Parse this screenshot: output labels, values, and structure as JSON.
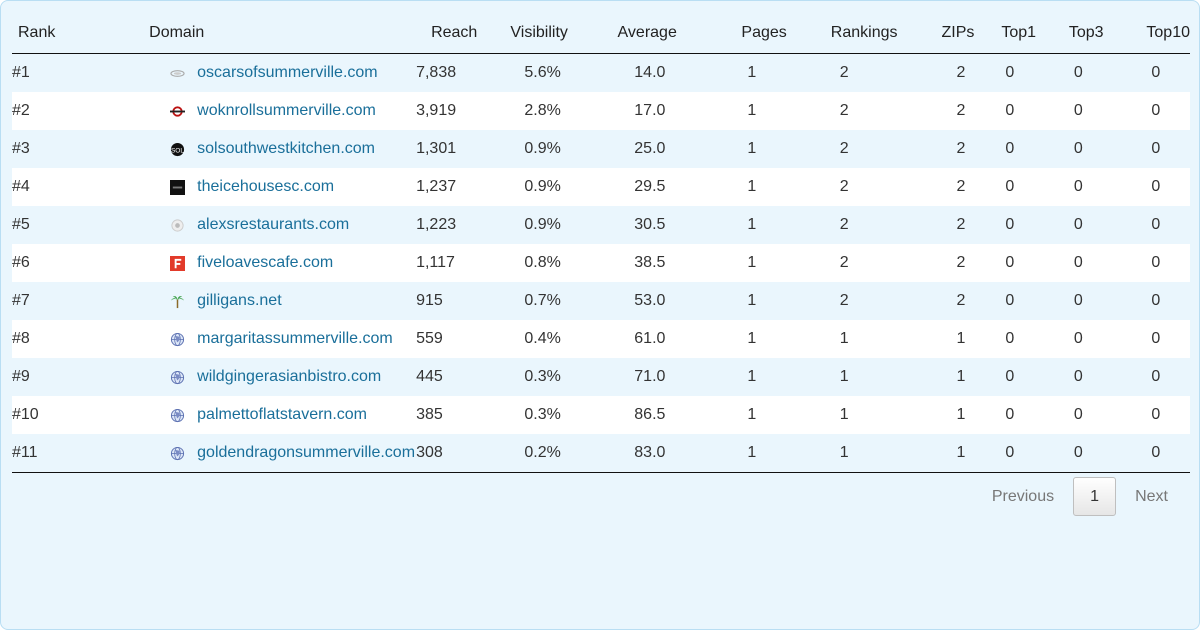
{
  "headers": {
    "rank": "Rank",
    "domain": "Domain",
    "reach": "Reach",
    "visibility": "Visibility",
    "average": "Average",
    "pages": "Pages",
    "rankings": "Rankings",
    "zips": "ZIPs",
    "top1": "Top1",
    "top3": "Top3",
    "top10": "Top10"
  },
  "rows": [
    {
      "rank": "#1",
      "domain": "oscarsofsummerville.com",
      "icon": "oscars-favicon-icon",
      "reach": "7,838",
      "visibility": "5.6%",
      "average": "14.0",
      "pages": "1",
      "rankings": "2",
      "zips": "2",
      "top1": "0",
      "top3": "0",
      "top10": "0"
    },
    {
      "rank": "#2",
      "domain": "woknrollsummerville.com",
      "icon": "woknroll-favicon-icon",
      "reach": "3,919",
      "visibility": "2.8%",
      "average": "17.0",
      "pages": "1",
      "rankings": "2",
      "zips": "2",
      "top1": "0",
      "top3": "0",
      "top10": "0"
    },
    {
      "rank": "#3",
      "domain": "solsouthwestkitchen.com",
      "icon": "sol-favicon-icon",
      "reach": "1,301",
      "visibility": "0.9%",
      "average": "25.0",
      "pages": "1",
      "rankings": "2",
      "zips": "2",
      "top1": "0",
      "top3": "0",
      "top10": "0"
    },
    {
      "rank": "#4",
      "domain": "theicehousesc.com",
      "icon": "icehouse-favicon-icon",
      "reach": "1,237",
      "visibility": "0.9%",
      "average": "29.5",
      "pages": "1",
      "rankings": "2",
      "zips": "2",
      "top1": "0",
      "top3": "0",
      "top10": "0"
    },
    {
      "rank": "#5",
      "domain": "alexsrestaurants.com",
      "icon": "alexs-favicon-icon",
      "reach": "1,223",
      "visibility": "0.9%",
      "average": "30.5",
      "pages": "1",
      "rankings": "2",
      "zips": "2",
      "top1": "0",
      "top3": "0",
      "top10": "0"
    },
    {
      "rank": "#6",
      "domain": "fiveloavescafe.com",
      "icon": "fiveloaves-favicon-icon",
      "reach": "1,117",
      "visibility": "0.8%",
      "average": "38.5",
      "pages": "1",
      "rankings": "2",
      "zips": "2",
      "top1": "0",
      "top3": "0",
      "top10": "0"
    },
    {
      "rank": "#7",
      "domain": "gilligans.net",
      "icon": "palm-tree-icon",
      "reach": "915",
      "visibility": "0.7%",
      "average": "53.0",
      "pages": "1",
      "rankings": "2",
      "zips": "2",
      "top1": "0",
      "top3": "0",
      "top10": "0"
    },
    {
      "rank": "#8",
      "domain": "margaritassummerville.com",
      "icon": "globe-icon",
      "reach": "559",
      "visibility": "0.4%",
      "average": "61.0",
      "pages": "1",
      "rankings": "1",
      "zips": "1",
      "top1": "0",
      "top3": "0",
      "top10": "0"
    },
    {
      "rank": "#9",
      "domain": "wildgingerasianbistro.com",
      "icon": "globe-icon",
      "reach": "445",
      "visibility": "0.3%",
      "average": "71.0",
      "pages": "1",
      "rankings": "1",
      "zips": "1",
      "top1": "0",
      "top3": "0",
      "top10": "0"
    },
    {
      "rank": "#10",
      "domain": "palmettoflatstavern.com",
      "icon": "globe-icon",
      "reach": "385",
      "visibility": "0.3%",
      "average": "86.5",
      "pages": "1",
      "rankings": "1",
      "zips": "1",
      "top1": "0",
      "top3": "0",
      "top10": "0"
    },
    {
      "rank": "#11",
      "domain": "goldendragonsummerville.com",
      "icon": "globe-icon",
      "reach": "308",
      "visibility": "0.2%",
      "average": "83.0",
      "pages": "1",
      "rankings": "1",
      "zips": "1",
      "top1": "0",
      "top3": "0",
      "top10": "0"
    }
  ],
  "pagination": {
    "previous": "Previous",
    "current": "1",
    "next": "Next"
  },
  "colors": {
    "panel_bg": "#eaf6fd",
    "panel_border": "#b9def3",
    "link": "#1a6f9a",
    "row_alt": "#ffffff"
  }
}
